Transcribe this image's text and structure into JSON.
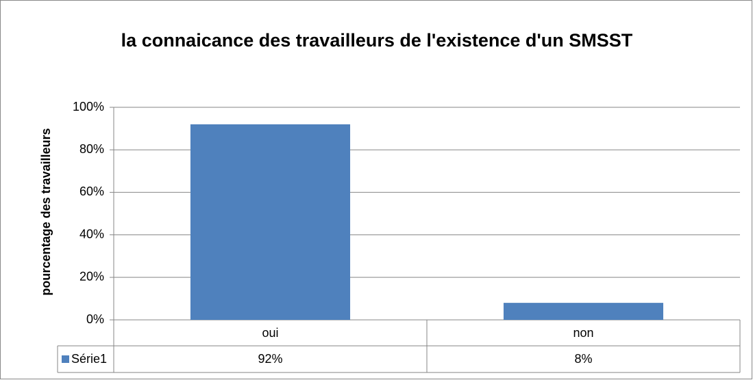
{
  "chart_data": {
    "type": "bar",
    "title": "la connaicance des travailleurs de l'existence d'un SMSST",
    "y_label": "pourcentage des travailleurs",
    "categories": [
      "oui",
      "non"
    ],
    "series": [
      {
        "name": "Série1",
        "color": "#4f81bd",
        "values": [
          92,
          8
        ],
        "value_labels": [
          "92%",
          "8%"
        ]
      }
    ],
    "ylim": [
      0,
      100
    ],
    "yticks": [
      {
        "value": 0,
        "label": "0%"
      },
      {
        "value": 20,
        "label": "20%"
      },
      {
        "value": 40,
        "label": "40%"
      },
      {
        "value": 60,
        "label": "60%"
      },
      {
        "value": 80,
        "label": "80%"
      },
      {
        "value": 100,
        "label": "100%"
      }
    ],
    "grid": true,
    "data_table": true
  }
}
